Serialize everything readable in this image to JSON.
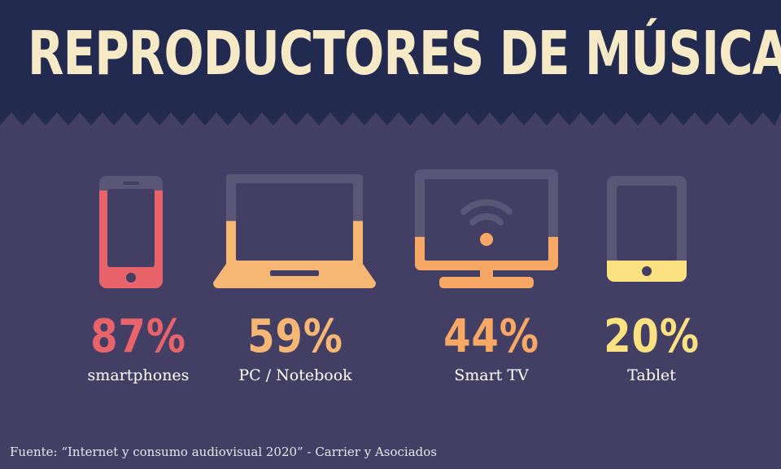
{
  "title": "REPRODUCTORES DE MÚSICA",
  "source": "Fuente: “Internet y consumo audiovisual 2020” - Carrier y Asociados",
  "colors": {
    "header_bg": "#232a50",
    "body_bg": "#433f64",
    "title": "#f6eac6",
    "device_base": "#5a5678",
    "label": "#ffffff"
  },
  "chart_data": {
    "type": "bar",
    "title": "REPRODUCTORES DE MÚSICA",
    "unit": "%",
    "categories": [
      "smartphones",
      "PC / Notebook",
      "Smart TV",
      "Tablet"
    ],
    "values": [
      87,
      59,
      44,
      20
    ],
    "value_labels": [
      "87%",
      "59%",
      "44%",
      "20%"
    ],
    "colors": [
      "#e8636a",
      "#f7b774",
      "#f8a865",
      "#fbe17f"
    ],
    "icons": [
      "smartphone-icon",
      "laptop-icon",
      "smart-tv-icon",
      "tablet-icon"
    ]
  }
}
